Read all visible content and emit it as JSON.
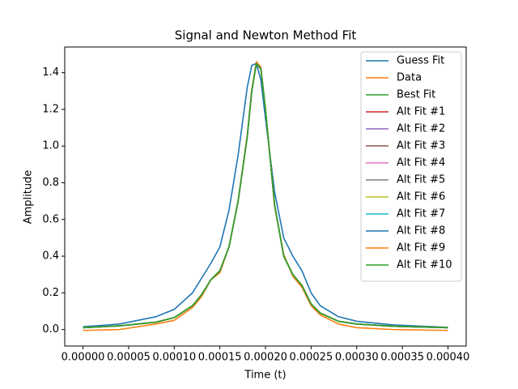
{
  "chart_data": {
    "type": "line",
    "title": "Signal and Newton Method Fit",
    "x_label": "Time (t)",
    "y_label": "Amplitude",
    "x": [
      0,
      4e-05,
      8e-05,
      0.0001,
      0.00012,
      0.00013,
      0.00014,
      0.00015,
      0.00016,
      0.00017,
      0.00018,
      0.000185,
      0.00019,
      0.000195,
      0.0002,
      0.00021,
      0.00022,
      0.00023,
      0.00024,
      0.00025,
      0.00026,
      0.00028,
      0.0003,
      0.00034,
      0.0004
    ],
    "xlim": [
      -2e-05,
      0.00042
    ],
    "xticks": [
      {
        "value": 0,
        "label": "0.00000"
      },
      {
        "value": 5e-05,
        "label": "0.00005"
      },
      {
        "value": 0.0001,
        "label": "0.00010"
      },
      {
        "value": 0.00015,
        "label": "0.00015"
      },
      {
        "value": 0.0002,
        "label": "0.00020"
      },
      {
        "value": 0.00025,
        "label": "0.00025"
      },
      {
        "value": 0.0003,
        "label": "0.00030"
      },
      {
        "value": 0.00035,
        "label": "0.00035"
      },
      {
        "value": 0.0004,
        "label": "0.00040"
      }
    ],
    "ylim": [
      -0.09,
      1.54
    ],
    "yticks": [
      {
        "value": 0,
        "label": "0.0"
      },
      0.2,
      0.4,
      0.6,
      0.8,
      {
        "value": 1,
        "label": "1.0"
      },
      1.2,
      1.4
    ],
    "legend": "upper right",
    "series": [
      {
        "name": "Guess Fit",
        "color": "#1f77b4",
        "values": [
          0.015,
          0.03,
          0.07,
          0.11,
          0.2,
          0.28,
          0.36,
          0.45,
          0.65,
          0.95,
          1.32,
          1.44,
          1.45,
          1.36,
          1.15,
          0.75,
          0.5,
          0.4,
          0.32,
          0.2,
          0.13,
          0.07,
          0.045,
          0.025,
          0.012
        ]
      },
      {
        "name": "Data",
        "color": "#ff7f0e",
        "values": [
          -0.005,
          0.0,
          0.03,
          0.05,
          0.12,
          0.18,
          0.27,
          0.31,
          0.45,
          0.7,
          1.06,
          1.31,
          1.46,
          1.43,
          1.2,
          0.67,
          0.41,
          0.29,
          0.23,
          0.13,
          0.08,
          0.03,
          0.01,
          0.0,
          -0.005
        ]
      },
      {
        "name": "Best Fit",
        "color": "#2ca02c",
        "values": [
          0.01,
          0.02,
          0.04,
          0.065,
          0.13,
          0.19,
          0.27,
          0.32,
          0.45,
          0.7,
          1.05,
          1.3,
          1.45,
          1.42,
          1.2,
          0.68,
          0.4,
          0.3,
          0.24,
          0.14,
          0.09,
          0.045,
          0.03,
          0.018,
          0.01
        ]
      },
      {
        "name": "Alt Fit #1",
        "color": "#d62728",
        "values": [
          0.01,
          0.02,
          0.04,
          0.065,
          0.13,
          0.19,
          0.27,
          0.32,
          0.45,
          0.7,
          1.05,
          1.3,
          1.45,
          1.42,
          1.2,
          0.68,
          0.4,
          0.3,
          0.24,
          0.14,
          0.09,
          0.045,
          0.03,
          0.018,
          0.01
        ]
      },
      {
        "name": "Alt Fit #2",
        "color": "#9467bd",
        "values": [
          0.01,
          0.02,
          0.04,
          0.065,
          0.13,
          0.19,
          0.27,
          0.32,
          0.45,
          0.7,
          1.05,
          1.3,
          1.45,
          1.42,
          1.2,
          0.68,
          0.4,
          0.3,
          0.24,
          0.14,
          0.09,
          0.045,
          0.03,
          0.018,
          0.01
        ]
      },
      {
        "name": "Alt Fit #3",
        "color": "#8c564b",
        "values": [
          0.01,
          0.02,
          0.04,
          0.065,
          0.13,
          0.19,
          0.27,
          0.32,
          0.45,
          0.7,
          1.05,
          1.3,
          1.45,
          1.42,
          1.2,
          0.68,
          0.4,
          0.3,
          0.24,
          0.14,
          0.09,
          0.045,
          0.03,
          0.018,
          0.01
        ]
      },
      {
        "name": "Alt Fit #4",
        "color": "#e377c2",
        "values": [
          0.01,
          0.02,
          0.04,
          0.065,
          0.13,
          0.19,
          0.27,
          0.32,
          0.45,
          0.7,
          1.05,
          1.3,
          1.45,
          1.42,
          1.2,
          0.68,
          0.4,
          0.3,
          0.24,
          0.14,
          0.09,
          0.045,
          0.03,
          0.018,
          0.01
        ]
      },
      {
        "name": "Alt Fit #5",
        "color": "#7f7f7f",
        "values": [
          0.01,
          0.02,
          0.04,
          0.065,
          0.13,
          0.19,
          0.27,
          0.32,
          0.45,
          0.7,
          1.05,
          1.3,
          1.45,
          1.42,
          1.2,
          0.68,
          0.4,
          0.3,
          0.24,
          0.14,
          0.09,
          0.045,
          0.03,
          0.018,
          0.01
        ]
      },
      {
        "name": "Alt Fit #6",
        "color": "#bcbd22",
        "values": [
          0.01,
          0.02,
          0.04,
          0.065,
          0.13,
          0.19,
          0.27,
          0.32,
          0.45,
          0.7,
          1.05,
          1.3,
          1.45,
          1.42,
          1.2,
          0.68,
          0.4,
          0.3,
          0.24,
          0.14,
          0.09,
          0.045,
          0.03,
          0.018,
          0.01
        ]
      },
      {
        "name": "Alt Fit #7",
        "color": "#17becf",
        "values": [
          0.01,
          0.02,
          0.04,
          0.065,
          0.13,
          0.19,
          0.27,
          0.32,
          0.45,
          0.7,
          1.05,
          1.3,
          1.45,
          1.42,
          1.2,
          0.68,
          0.4,
          0.3,
          0.24,
          0.14,
          0.09,
          0.045,
          0.03,
          0.018,
          0.01
        ]
      },
      {
        "name": "Alt Fit #8",
        "color": "#1f77b4",
        "values": [
          0.01,
          0.02,
          0.04,
          0.065,
          0.13,
          0.19,
          0.27,
          0.32,
          0.45,
          0.7,
          1.05,
          1.3,
          1.45,
          1.42,
          1.2,
          0.68,
          0.4,
          0.3,
          0.24,
          0.14,
          0.09,
          0.045,
          0.03,
          0.018,
          0.01
        ]
      },
      {
        "name": "Alt Fit #9",
        "color": "#ff7f0e",
        "values": [
          0.01,
          0.02,
          0.04,
          0.065,
          0.13,
          0.19,
          0.27,
          0.32,
          0.45,
          0.7,
          1.05,
          1.3,
          1.45,
          1.42,
          1.2,
          0.68,
          0.4,
          0.3,
          0.24,
          0.14,
          0.09,
          0.045,
          0.03,
          0.018,
          0.01
        ]
      },
      {
        "name": "Alt Fit #10",
        "color": "#2ca02c",
        "values": [
          0.01,
          0.02,
          0.04,
          0.065,
          0.13,
          0.19,
          0.27,
          0.32,
          0.45,
          0.7,
          1.05,
          1.3,
          1.45,
          1.42,
          1.2,
          0.68,
          0.4,
          0.3,
          0.24,
          0.14,
          0.09,
          0.045,
          0.03,
          0.018,
          0.01
        ]
      }
    ]
  }
}
